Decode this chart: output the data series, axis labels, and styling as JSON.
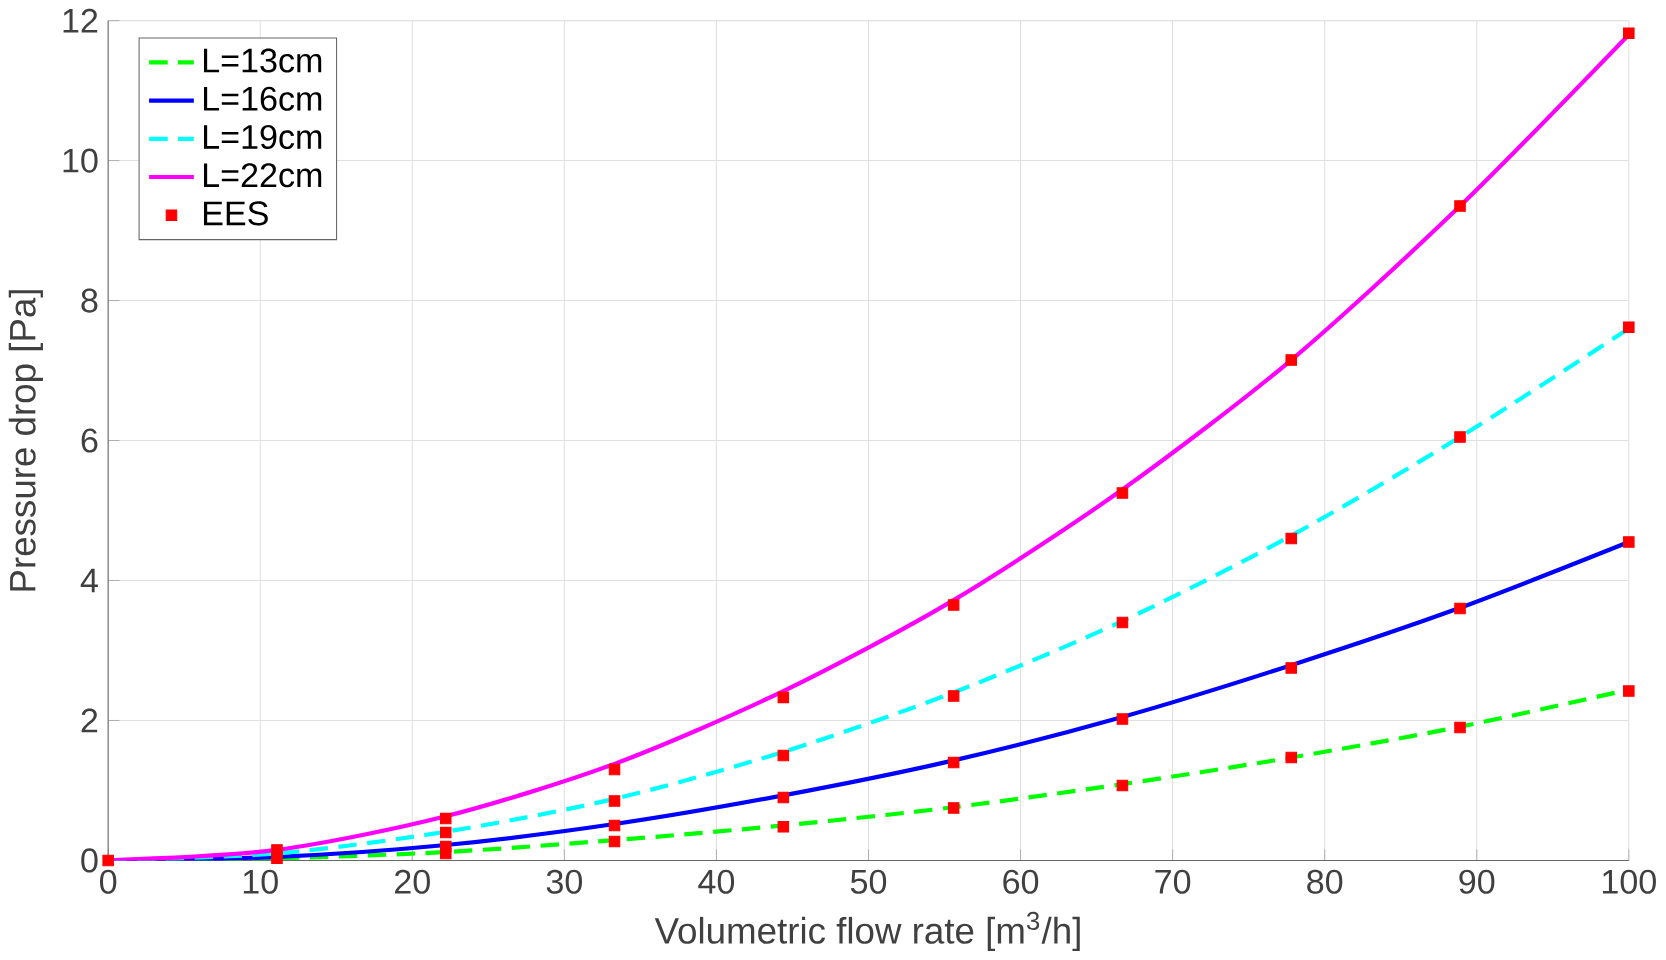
{
  "chart_data": {
    "type": "line",
    "xlabel": "Volumetric flow rate [m$^{3}$/h]",
    "ylabel": "Pressure drop [Pa]",
    "x": [
      0,
      11.1,
      22.2,
      33.3,
      44.4,
      55.6,
      66.7,
      77.8,
      88.9,
      100
    ],
    "series": [
      {
        "name": "L=13cm",
        "color": "#00ff00",
        "line_style": "dashed",
        "values": [
          0,
          0.03,
          0.12,
          0.29,
          0.5,
          0.76,
          1.09,
          1.47,
          1.91,
          2.44
        ]
      },
      {
        "name": "L=16cm",
        "color": "#0000ff",
        "line_style": "solid",
        "values": [
          0,
          0.05,
          0.22,
          0.52,
          0.93,
          1.43,
          2.05,
          2.79,
          3.61,
          4.55
        ]
      },
      {
        "name": "L=19cm",
        "color": "#00ffff",
        "line_style": "dashed",
        "values": [
          0,
          0.1,
          0.41,
          0.88,
          1.55,
          2.4,
          3.42,
          4.64,
          6.05,
          7.6
        ]
      },
      {
        "name": "L=22cm",
        "color": "#ff00ff",
        "line_style": "solid",
        "values": [
          0,
          0.15,
          0.63,
          1.38,
          2.42,
          3.72,
          5.3,
          7.15,
          9.35,
          11.8
        ]
      },
      {
        "name": "EES",
        "type": "scatter",
        "color": "#ff0000",
        "marker": "square",
        "x": [
          0,
          11.1,
          22.2,
          33.3,
          44.4,
          55.6,
          66.7,
          77.8,
          88.9,
          100,
          22.2,
          33.3,
          44.4,
          55.6,
          66.7,
          77.8,
          88.9,
          100,
          22.2,
          33.3,
          44.4,
          55.6,
          66.7,
          77.8,
          88.9,
          100,
          11.1,
          22.2,
          33.3,
          44.4,
          55.6,
          66.7,
          77.8,
          88.9,
          100
        ],
        "values": [
          0,
          0.03,
          0.1,
          0.27,
          0.48,
          0.75,
          1.07,
          1.47,
          1.9,
          2.42,
          0.2,
          0.5,
          0.9,
          1.4,
          2.02,
          2.75,
          3.6,
          4.55,
          0.4,
          0.85,
          1.5,
          2.35,
          3.4,
          4.6,
          6.05,
          7.62,
          0.15,
          0.6,
          1.3,
          2.33,
          3.65,
          5.25,
          7.15,
          9.35,
          11.82
        ]
      }
    ],
    "xlim": [
      0,
      100
    ],
    "ylim": [
      0,
      12
    ],
    "xticks": [
      0,
      10,
      20,
      30,
      40,
      50,
      60,
      70,
      80,
      90,
      100
    ],
    "yticks": [
      0,
      2,
      4,
      6,
      8,
      10,
      12
    ],
    "grid": true,
    "legend": "top left"
  }
}
